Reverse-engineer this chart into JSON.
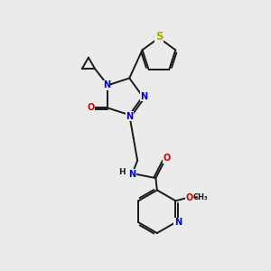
{
  "bg_color": "#ebebeb",
  "bond_color": "#1a1a1a",
  "N_color": "#0000cc",
  "O_color": "#cc0000",
  "S_color": "#aaaa00",
  "lw": 1.4,
  "fs": 7.0,
  "xlim": [
    0,
    10
  ],
  "ylim": [
    0,
    10
  ]
}
